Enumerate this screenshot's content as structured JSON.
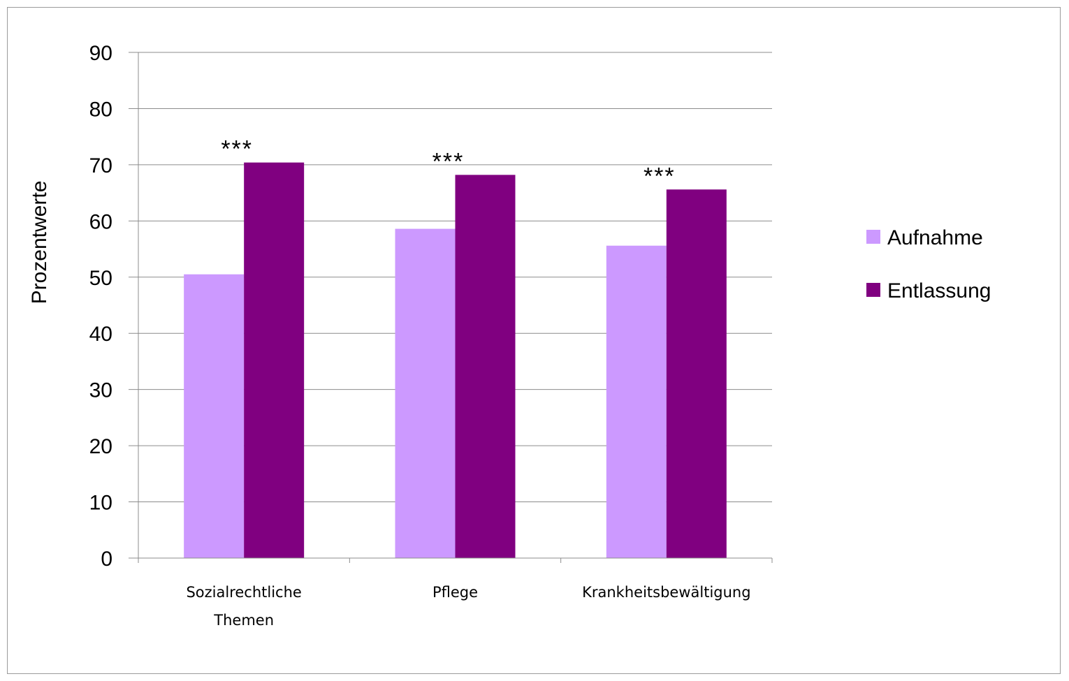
{
  "chart_data": {
    "type": "bar",
    "title": "",
    "xlabel": "",
    "ylabel": "Prozentwerte",
    "ylim": [
      0,
      90
    ],
    "yticks": [
      0,
      10,
      20,
      30,
      40,
      50,
      60,
      70,
      80,
      90
    ],
    "categories": [
      [
        "Sozialrechtliche",
        "Themen"
      ],
      [
        "Pflege"
      ],
      [
        "Krankheitsbewältigung"
      ]
    ],
    "series": [
      {
        "name": "Aufnahme",
        "color": "#cc99ff",
        "values": [
          50.5,
          58.6,
          55.6
        ]
      },
      {
        "name": "Entlassung",
        "color": "#800080",
        "values": [
          70.4,
          68.2,
          65.6
        ]
      }
    ],
    "annotations": [
      "***",
      "***",
      "***"
    ],
    "grid": true,
    "legend_position": "right"
  }
}
